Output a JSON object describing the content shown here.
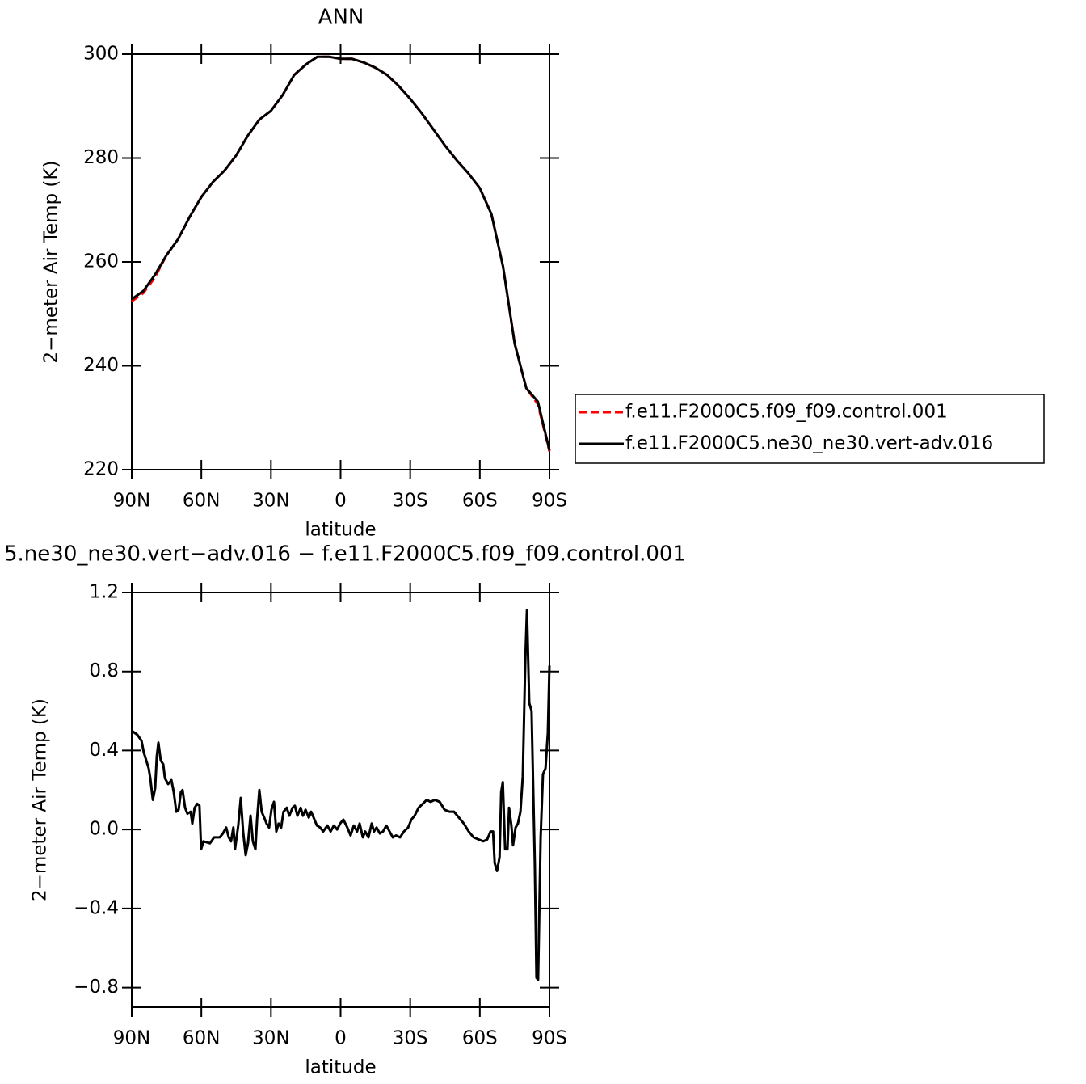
{
  "chart_data": [
    {
      "type": "line",
      "title": "ANN",
      "xlabel": "latitude",
      "ylabel": "2−meter Air Temp (K)",
      "x": [
        90,
        85,
        80,
        75,
        70,
        65,
        60,
        55,
        50,
        45,
        40,
        35,
        30,
        25,
        20,
        15,
        10,
        5,
        0,
        -5,
        -10,
        -15,
        -20,
        -25,
        -30,
        -35,
        -40,
        -45,
        -50,
        -55,
        -60,
        -65,
        -70,
        -75,
        -80,
        -85,
        -90
      ],
      "series": [
        {
          "name": "f.e11.F2000C5.f09_f09.control.001",
          "color": "#ff0000",
          "line_style": "dashed",
          "values": [
            252.4,
            254.0,
            257.0,
            261.3,
            264.4,
            268.7,
            272.5,
            275.4,
            277.6,
            280.5,
            284.3,
            287.4,
            289.1,
            292.1,
            296.0,
            298.0,
            299.5,
            299.5,
            299.1,
            299.1,
            298.4,
            297.4,
            296.0,
            293.9,
            291.4,
            288.6,
            285.5,
            282.4,
            279.6,
            277.1,
            274.2,
            269.2,
            259.1,
            244.3,
            235.7,
            232.6,
            223.5
          ]
        },
        {
          "name": "f.e11.F2000C5.ne30_ne30.vert-adv.016",
          "color": "#000000",
          "line_style": "solid",
          "values": [
            252.8,
            254.4,
            257.5,
            261.3,
            264.4,
            268.7,
            272.5,
            275.4,
            277.6,
            280.5,
            284.3,
            287.4,
            289.1,
            292.1,
            296.0,
            298.0,
            299.5,
            299.5,
            299.1,
            299.1,
            298.4,
            297.4,
            296.0,
            293.9,
            291.4,
            288.6,
            285.5,
            282.4,
            279.6,
            277.1,
            274.2,
            269.2,
            259.1,
            244.3,
            235.7,
            233.1,
            223.7
          ]
        }
      ],
      "xlim": [
        90,
        -90
      ],
      "xticks": [
        {
          "value": 90,
          "label": "90N"
        },
        {
          "value": 60,
          "label": "60N"
        },
        {
          "value": 30,
          "label": "30N"
        },
        0,
        {
          "value": -30,
          "label": "30S"
        },
        {
          "value": -60,
          "label": "60S"
        },
        {
          "value": -90,
          "label": "90S"
        }
      ],
      "ylim": [
        220,
        300
      ],
      "yticks": [
        220,
        240,
        260,
        280,
        300
      ],
      "legend_position": "right"
    },
    {
      "type": "line",
      "title": "5.ne30_ne30.vert−adv.016 − f.e11.F2000C5.f09_f09.control.001",
      "xlabel": "latitude",
      "ylabel": "2−meter Air Temp (K)",
      "x": [
        90,
        87.6,
        85.8,
        84.8,
        82.7,
        82.0,
        80.9,
        79.9,
        79.2,
        78.5,
        77.5,
        76.4,
        75.7,
        74.3,
        72.9,
        71.9,
        70.8,
        69.8,
        68.8,
        68.1,
        67.0,
        66.0,
        64.6,
        63.9,
        62.9,
        61.8,
        60.8,
        60.1,
        59.1,
        56.3,
        54.5,
        52.1,
        50.7,
        49.3,
        48.2,
        47.2,
        46.2,
        45.5,
        44.1,
        43.0,
        42.0,
        40.9,
        39.9,
        38.8,
        37.8,
        36.7,
        36.0,
        35.0,
        34.0,
        32.9,
        31.9,
        30.8,
        29.8,
        28.7,
        27.7,
        26.7,
        25.6,
        24.6,
        23.2,
        22.1,
        20.7,
        19.7,
        18.6,
        17.2,
        16.2,
        15.1,
        13.7,
        12.7,
        11.6,
        10.2,
        8.8,
        7.5,
        5.7,
        4.3,
        2.9,
        1.5,
        0.2,
        -1.2,
        -2.9,
        -4.3,
        -5.7,
        -7.1,
        -8.2,
        -9.6,
        -10.6,
        -12.0,
        -13.4,
        -14.4,
        -15.5,
        -16.9,
        -18.3,
        -19.7,
        -21.1,
        -22.5,
        -23.9,
        -25.6,
        -27.3,
        -29.1,
        -30.5,
        -31.9,
        -33.6,
        -35.4,
        -37.1,
        -38.8,
        -40.6,
        -42.7,
        -44.8,
        -46.9,
        -48.9,
        -51.0,
        -53.1,
        -55.2,
        -57.3,
        -59.4,
        -61.5,
        -63.2,
        -64.6,
        -65.7,
        -66.4,
        -67.4,
        -68.5,
        -69.2,
        -69.9,
        -70.9,
        -71.9,
        -72.6,
        -73.6,
        -74.3,
        -75.4,
        -76.4,
        -77.5,
        -78.5,
        -79.6,
        -80.3,
        -81.3,
        -82.3,
        -83.7,
        -84.4,
        -85.1,
        -86.2,
        -87.2,
        -88.3,
        -89.3,
        -90
      ],
      "series": [
        {
          "color": "#000000",
          "line_style": "solid",
          "values": [
            0.5,
            0.48,
            0.45,
            0.39,
            0.31,
            0.26,
            0.15,
            0.21,
            0.37,
            0.44,
            0.35,
            0.33,
            0.26,
            0.23,
            0.25,
            0.19,
            0.09,
            0.1,
            0.19,
            0.2,
            0.11,
            0.08,
            0.09,
            0.03,
            0.11,
            0.13,
            0.12,
            -0.1,
            -0.06,
            -0.07,
            -0.04,
            -0.04,
            -0.02,
            0.01,
            -0.04,
            -0.06,
            0.01,
            -0.1,
            0.02,
            0.16,
            -0.01,
            -0.13,
            -0.07,
            0.07,
            -0.06,
            -0.1,
            0.05,
            0.2,
            0.09,
            0.06,
            0.03,
            0.01,
            0.1,
            0.14,
            -0.01,
            0.03,
            0.01,
            0.09,
            0.11,
            0.07,
            0.11,
            0.12,
            0.07,
            0.11,
            0.07,
            0.1,
            0.06,
            0.09,
            0.06,
            0.02,
            0.01,
            -0.01,
            0.02,
            -0.01,
            0.02,
            0.0,
            0.03,
            0.05,
            0.01,
            -0.03,
            0.02,
            -0.01,
            0.03,
            -0.04,
            -0.01,
            -0.04,
            0.03,
            -0.01,
            0.01,
            -0.02,
            -0.01,
            0.02,
            -0.01,
            -0.04,
            -0.03,
            -0.04,
            -0.01,
            0.01,
            0.05,
            0.07,
            0.11,
            0.13,
            0.15,
            0.14,
            0.15,
            0.14,
            0.1,
            0.09,
            0.09,
            0.06,
            0.03,
            -0.01,
            -0.04,
            -0.05,
            -0.06,
            -0.05,
            -0.01,
            -0.01,
            -0.17,
            -0.21,
            -0.14,
            0.19,
            0.24,
            -0.1,
            -0.1,
            0.11,
            0.02,
            -0.08,
            0.01,
            0.03,
            0.09,
            0.27,
            0.86,
            1.11,
            0.64,
            0.6,
            -0.18,
            -0.75,
            -0.76,
            -0.04,
            0.28,
            0.31,
            0.49,
            0.83
          ]
        }
      ],
      "xlim": [
        90,
        -90
      ],
      "xticks": [
        {
          "value": 90,
          "label": "90N"
        },
        {
          "value": 60,
          "label": "60N"
        },
        {
          "value": 30,
          "label": "30N"
        },
        0,
        {
          "value": -30,
          "label": "30S"
        },
        {
          "value": -60,
          "label": "60S"
        },
        {
          "value": -90,
          "label": "90S"
        }
      ],
      "ylim": [
        -0.9,
        1.2
      ],
      "yticks": [
        {
          "value": -0.8,
          "label": "−0.8"
        },
        {
          "value": -0.4,
          "label": "−0.4"
        },
        {
          "value": 0,
          "label": "0.0"
        },
        0.4,
        0.8,
        1.2
      ]
    }
  ]
}
